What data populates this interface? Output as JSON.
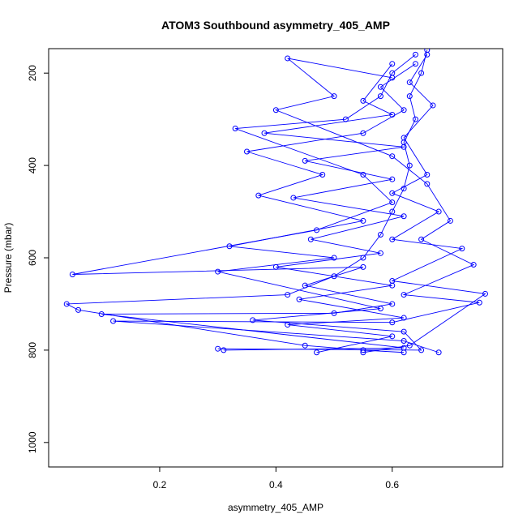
{
  "chart_data": {
    "type": "line",
    "title": "ATOM3 Southbound asymmetry_405_AMP",
    "xlabel": "asymmetry_405_AMP",
    "ylabel": "Pressure (mbar)",
    "xlim": [
      0.009,
      0.79
    ],
    "ylim": [
      1053,
      147
    ],
    "xticks": [
      0.2,
      0.4,
      0.6
    ],
    "yticks": [
      200,
      400,
      600,
      800,
      1000
    ],
    "markers": true,
    "series": [
      {
        "color": "#0000ff",
        "x": [
          0.62,
          0.55,
          0.45,
          0.06,
          0.04,
          0.42,
          0.5,
          0.55,
          0.58,
          0.6,
          0.62,
          0.63,
          0.62,
          0.64,
          0.63,
          0.65,
          0.66
        ],
        "values": [
          805,
          800,
          790,
          713,
          700,
          680,
          640,
          600,
          550,
          500,
          450,
          400,
          350,
          300,
          250,
          200,
          150
        ]
      },
      {
        "color": "#0000ff",
        "x": [
          0.31,
          0.62,
          0.1,
          0.5,
          0.6,
          0.45,
          0.55,
          0.05,
          0.47,
          0.6,
          0.55,
          0.33,
          0.52,
          0.58,
          0.6,
          0.64
        ],
        "values": [
          800,
          795,
          722,
          720,
          700,
          660,
          620,
          636,
          540,
          480,
          420,
          320,
          300,
          250,
          200,
          160
        ]
      },
      {
        "color": "#0000ff",
        "x": [
          0.68,
          0.62,
          0.12,
          0.6,
          0.75,
          0.62,
          0.74,
          0.65,
          0.7,
          0.66,
          0.6,
          0.4,
          0.5,
          0.42,
          0.6
        ],
        "values": [
          805,
          780,
          737,
          740,
          697,
          680,
          615,
          560,
          520,
          440,
          380,
          280,
          250,
          168,
          210
        ]
      },
      {
        "color": "#0000ff",
        "x": [
          0.3,
          0.65,
          0.62,
          0.36,
          0.58,
          0.3,
          0.5,
          0.32,
          0.55,
          0.37,
          0.48,
          0.35,
          0.55,
          0.62,
          0.58,
          0.64
        ],
        "values": [
          797,
          800,
          760,
          735,
          710,
          630,
          600,
          575,
          520,
          465,
          420,
          370,
          330,
          280,
          230,
          180
        ]
      },
      {
        "color": "#0000ff",
        "x": [
          0.55,
          0.63,
          0.76,
          0.6,
          0.72,
          0.6,
          0.68,
          0.6,
          0.66,
          0.62,
          0.67,
          0.63,
          0.66
        ],
        "values": [
          805,
          790,
          678,
          650,
          580,
          560,
          500,
          460,
          420,
          340,
          270,
          220,
          160
        ]
      },
      {
        "color": "#0000ff",
        "x": [
          0.47,
          0.6,
          0.42,
          0.62,
          0.44,
          0.6,
          0.4,
          0.58,
          0.46,
          0.62,
          0.43,
          0.6,
          0.45,
          0.62,
          0.38,
          0.6,
          0.55,
          0.6
        ],
        "values": [
          805,
          770,
          745,
          730,
          690,
          660,
          620,
          590,
          560,
          510,
          470,
          430,
          390,
          360,
          330,
          290,
          260,
          180
        ]
      }
    ]
  }
}
